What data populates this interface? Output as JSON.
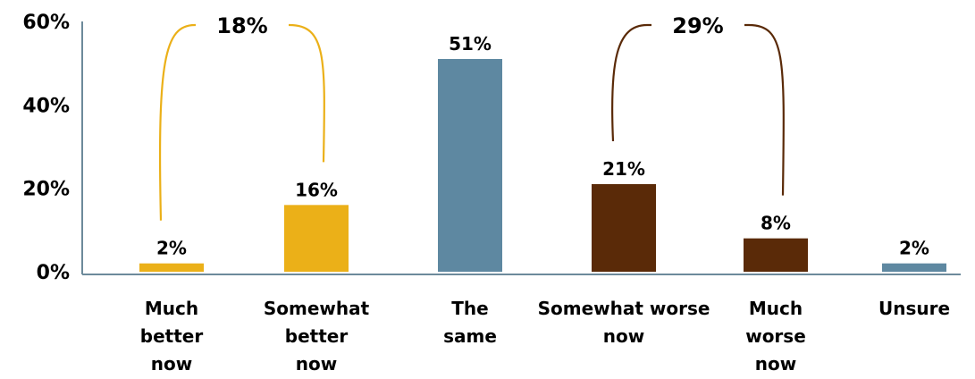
{
  "chart_data": {
    "type": "bar",
    "categories": [
      "Much\nbetter\nnow",
      "Somewhat\nbetter\nnow",
      "The\nsame",
      "Somewhat worse\nnow",
      "Much\nworse\nnow",
      "Unsure"
    ],
    "values": [
      2,
      16,
      51,
      21,
      8,
      2
    ],
    "data_labels": [
      "2%",
      "16%",
      "51%",
      "21%",
      "8%",
      "2%"
    ],
    "yticks": [
      "0%",
      "20%",
      "40%",
      "60%"
    ],
    "ylim": [
      0,
      60
    ],
    "grid": false,
    "colors": [
      "#EBB018",
      "#EBB018",
      "#5E88A1",
      "#5A2A08",
      "#5A2A08",
      "#5E88A1"
    ],
    "groups": [
      {
        "label": "18%",
        "from": 0,
        "to": 1,
        "color": "#EBB018"
      },
      {
        "label": "29%",
        "from": 3,
        "to": 4,
        "color": "#5A2A08"
      }
    ]
  }
}
